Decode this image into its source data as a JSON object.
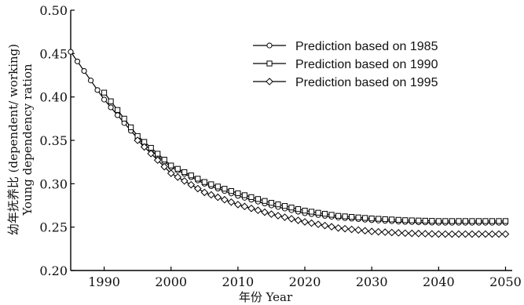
{
  "chart_data": {
    "type": "line",
    "title": "",
    "xlabel": "年份 Year",
    "ylabel": "幼年抚养比 (dependent/ working)",
    "ylabel_en": "Young dependency ration",
    "xlim": [
      1985,
      2051
    ],
    "ylim": [
      0.2,
      0.5
    ],
    "xticks": [
      1990,
      2000,
      2010,
      2020,
      2030,
      2040,
      2050
    ],
    "yticks": [
      "0.20",
      "0.25",
      "0.30",
      "0.35",
      "0.40",
      "0.45",
      "0.50"
    ],
    "grid": false,
    "legend_position": "top-right",
    "series": [
      {
        "name": "Prediction based on 1985",
        "marker": "circle",
        "x": [
          1985,
          1990,
          1995,
          2000,
          2005,
          2010,
          2015,
          2020,
          2025,
          2030,
          2035,
          2040,
          2045,
          2050
        ],
        "values": [
          0.452,
          0.397,
          0.352,
          0.319,
          0.3,
          0.286,
          0.275,
          0.266,
          0.261,
          0.258,
          0.256,
          0.255,
          0.255,
          0.255
        ]
      },
      {
        "name": "Prediction based on 1990",
        "marker": "square",
        "x": [
          1990,
          1995,
          2000,
          2005,
          2010,
          2015,
          2020,
          2025,
          2030,
          2035,
          2040,
          2045,
          2050
        ],
        "values": [
          0.405,
          0.355,
          0.321,
          0.302,
          0.289,
          0.278,
          0.269,
          0.263,
          0.26,
          0.258,
          0.257,
          0.257,
          0.257
        ]
      },
      {
        "name": "Prediction based on 1995",
        "marker": "diamond",
        "x": [
          1995,
          2000,
          2005,
          2010,
          2015,
          2020,
          2025,
          2030,
          2035,
          2040,
          2045,
          2050
        ],
        "values": [
          0.35,
          0.312,
          0.29,
          0.276,
          0.265,
          0.256,
          0.249,
          0.245,
          0.243,
          0.242,
          0.242,
          0.242
        ]
      }
    ]
  }
}
